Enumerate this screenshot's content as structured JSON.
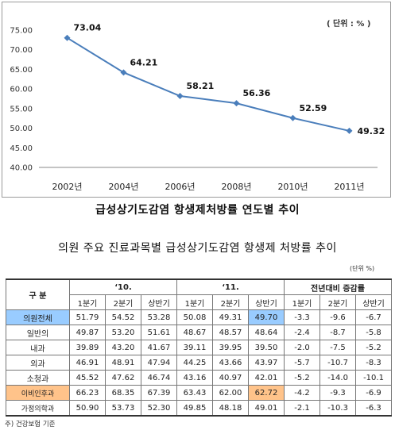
{
  "chart_data": {
    "type": "line",
    "title": "급성상기도감염 항생제처방률 연도별 추이",
    "unit_note": "( 단위 : % )",
    "categories": [
      "2002년",
      "2004년",
      "2006년",
      "2008년",
      "2010년",
      "2011년"
    ],
    "values": [
      73.04,
      64.21,
      58.21,
      56.36,
      52.59,
      49.32
    ],
    "value_labels": [
      "73.04",
      "64.21",
      "58.21",
      "56.36",
      "52.59",
      "49.32"
    ],
    "ylim": [
      40,
      75
    ],
    "yticks": [
      "40.00",
      "45.00",
      "50.00",
      "55.00",
      "60.00",
      "65.00",
      "70.00",
      "75.00"
    ],
    "line_color": "#4a7ebb",
    "grid": false
  },
  "table": {
    "title": "의원 주요 진료과목별 급성상기도감염 항생제 처방률 추이",
    "unit": "(단위 %)",
    "corner_label": "구  분",
    "groups": [
      "‘10.",
      "‘11.",
      "전년대비 증감률"
    ],
    "subheaders": [
      "1분기",
      "2분기",
      "상반기",
      "1분기",
      "2분기",
      "상반기",
      "1분기",
      "2분기",
      "상반기"
    ],
    "rows": [
      {
        "label": "의원전체",
        "cells": [
          "51.79",
          "54.52",
          "53.28",
          "50.08",
          "49.31",
          "49.70",
          "-3.3",
          "-9.6",
          "-6.7"
        ]
      },
      {
        "label": "일반의",
        "cells": [
          "49.87",
          "53.20",
          "51.61",
          "48.67",
          "48.57",
          "48.64",
          "-2.4",
          "-8.7",
          "-5.8"
        ]
      },
      {
        "label": "내과",
        "cells": [
          "39.89",
          "43.20",
          "41.67",
          "39.11",
          "39.95",
          "39.50",
          "-2.0",
          "-7.5",
          "-5.2"
        ]
      },
      {
        "label": "외과",
        "cells": [
          "46.91",
          "48.91",
          "47.94",
          "44.25",
          "43.66",
          "43.97",
          "-5.7",
          "-10.7",
          "-8.3"
        ]
      },
      {
        "label": "소청과",
        "cells": [
          "45.52",
          "47.62",
          "46.74",
          "43.16",
          "40.97",
          "42.01",
          "-5.2",
          "-14.0",
          "-10.1"
        ]
      },
      {
        "label": "이비인후과",
        "cells": [
          "66.23",
          "68.35",
          "67.39",
          "63.43",
          "62.00",
          "62.72",
          "-4.2",
          "-9.3",
          "-6.9"
        ]
      },
      {
        "label": "가정의학과",
        "cells": [
          "50.90",
          "53.73",
          "52.30",
          "49.85",
          "48.18",
          "49.01",
          "-2.1",
          "-10.3",
          "-6.3"
        ]
      }
    ],
    "highlight_colors": {
      "blue": "#99ccff",
      "orange": "#ffc38a"
    },
    "footnote": "주) 건강보험 기준"
  }
}
